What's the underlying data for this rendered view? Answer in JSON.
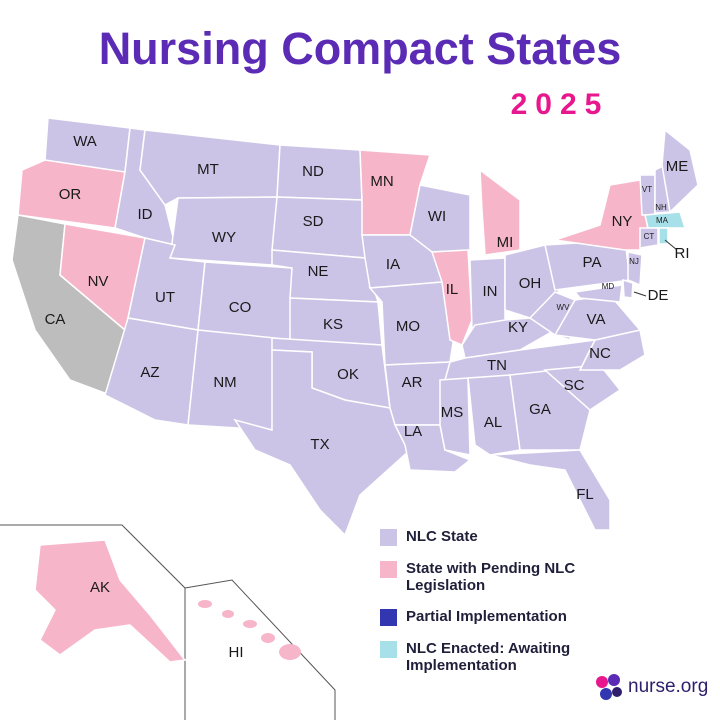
{
  "title": "Nursing Compact States",
  "year": "2025",
  "legend": {
    "items": [
      {
        "label": "NLC State",
        "color": "#ccc4e6",
        "states": [
          "WA",
          "MT",
          "ND",
          "SD",
          "ID",
          "WY",
          "NE",
          "UT",
          "CO",
          "KS",
          "AZ",
          "NM",
          "OK",
          "TX",
          "IA",
          "WI",
          "MO",
          "AR",
          "LA",
          "MS",
          "AL",
          "TN",
          "KY",
          "IN",
          "OH",
          "WV",
          "VA",
          "NC",
          "SC",
          "GA",
          "FL",
          "PA",
          "MD",
          "DE",
          "NJ",
          "VT",
          "NH",
          "ME",
          "CT"
        ]
      },
      {
        "label": "State with Pending NLC Legislation",
        "color": "#f7b5ca",
        "states": [
          "OR",
          "NV",
          "MN",
          "MI",
          "IL",
          "NY",
          "AK",
          "HI"
        ]
      },
      {
        "label": "Partial Implementation",
        "color": "#3236b0",
        "states": []
      },
      {
        "label": "NLC Enacted: Awaiting Implementation",
        "color": "#a8e0ea",
        "states": [
          "MA",
          "RI"
        ]
      }
    ]
  },
  "unlisted": {
    "color": "#bdbdbd",
    "states": [
      "CA"
    ]
  },
  "logo": "nurse.org"
}
